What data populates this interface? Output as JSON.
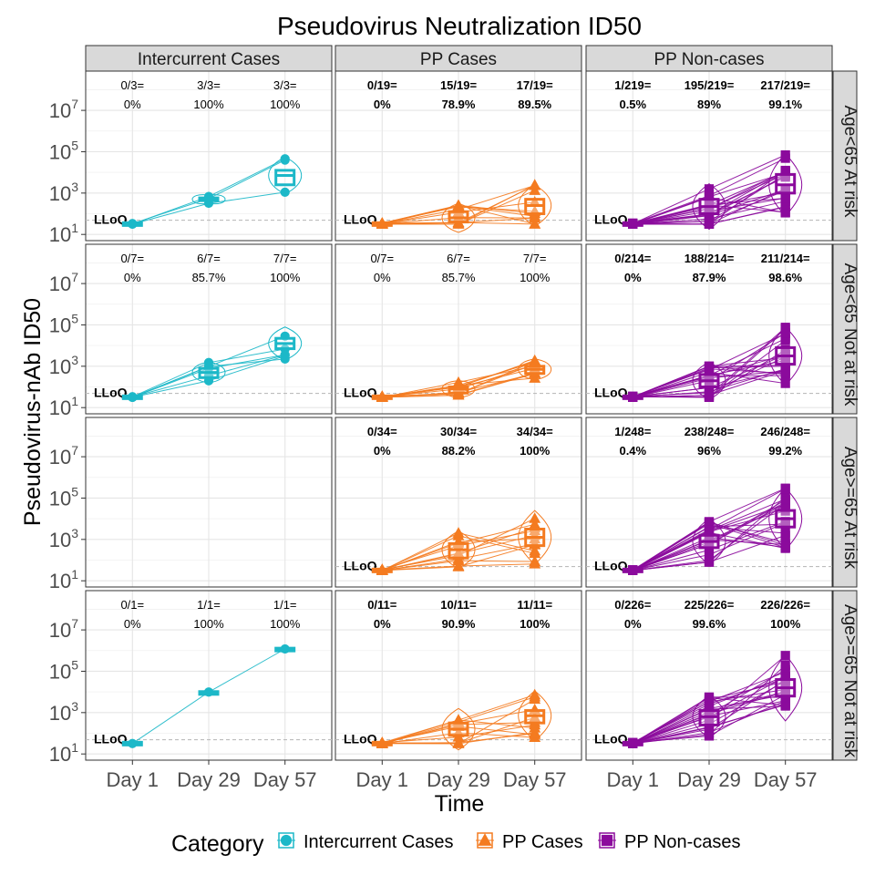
{
  "chart_data": {
    "type": "line",
    "title": "Pseudovirus Neutralization ID50",
    "xlabel": "Time",
    "ylabel": "Pseudovirus-nAb ID50",
    "x_categories": [
      "Day 1",
      "Day 29",
      "Day 57"
    ],
    "y_scale": "log10",
    "y_ticks": [
      {
        "base": "10",
        "exp": "1",
        "value": 10
      },
      {
        "base": "10",
        "exp": "3",
        "value": 1000
      },
      {
        "base": "10",
        "exp": "5",
        "value": 100000
      },
      {
        "base": "10",
        "exp": "7",
        "value": 10000000
      }
    ],
    "ylim_log10": [
      0.7,
      8.9
    ],
    "lloq": {
      "label": "LLoQ",
      "log10": 1.69
    },
    "columns": [
      "Intercurrent Cases",
      "PP Cases",
      "PP Non-cases"
    ],
    "rows": [
      "Age<65 At risk",
      "Age<65 Not at risk",
      "Age>=65 At risk",
      "Age>=65 Not at risk"
    ],
    "legend": {
      "title": "Category",
      "placement": "bottom",
      "items": [
        {
          "label": "Intercurrent Cases",
          "color": "#1CB8C8",
          "shape": "circle"
        },
        {
          "label": "PP Cases",
          "color": "#F47B20",
          "shape": "triangle"
        },
        {
          "label": "PP Non-cases",
          "color": "#8B0A9C",
          "shape": "square"
        }
      ]
    },
    "panels": [
      {
        "row": 0,
        "col": 0,
        "bold": false,
        "response": [
          [
            "0/3=",
            "0%"
          ],
          [
            "3/3=",
            "100%"
          ],
          [
            "3/3=",
            "100%"
          ]
        ],
        "median_log10": [
          1.5,
          2.7,
          3.85
        ],
        "q1_log10": [
          1.5,
          2.7,
          3.4
        ],
        "q3_log10": [
          1.5,
          2.7,
          4.1
        ],
        "spread_log10": [
          0.05,
          0.2,
          0.9
        ]
      },
      {
        "row": 0,
        "col": 1,
        "bold": true,
        "response": [
          [
            "0/19=",
            "0%"
          ],
          [
            "15/19=",
            "78.9%"
          ],
          [
            "17/19=",
            "89.5%"
          ]
        ],
        "median_log10": [
          1.5,
          1.8,
          2.4
        ],
        "q1_log10": [
          1.5,
          1.6,
          2.0
        ],
        "q3_log10": [
          1.5,
          2.1,
          2.7
        ],
        "spread_log10": [
          0.05,
          0.7,
          1.0
        ]
      },
      {
        "row": 0,
        "col": 2,
        "bold": true,
        "response": [
          [
            "1/219=",
            "0.5%"
          ],
          [
            "195/219=",
            "89%"
          ],
          [
            "217/219=",
            "99.1%"
          ]
        ],
        "median_log10": [
          1.5,
          2.35,
          3.4
        ],
        "q1_log10": [
          1.5,
          2.0,
          3.0
        ],
        "q3_log10": [
          1.5,
          2.7,
          3.9
        ],
        "spread_log10": [
          0.05,
          1.1,
          1.5
        ]
      },
      {
        "row": 1,
        "col": 0,
        "bold": false,
        "response": [
          [
            "0/7=",
            "0%"
          ],
          [
            "6/7=",
            "85.7%"
          ],
          [
            "7/7=",
            "100%"
          ]
        ],
        "median_log10": [
          1.5,
          2.7,
          4.1
        ],
        "q1_log10": [
          1.5,
          2.45,
          3.85
        ],
        "q3_log10": [
          1.5,
          2.9,
          4.35
        ],
        "spread_log10": [
          0.05,
          0.5,
          0.8
        ]
      },
      {
        "row": 1,
        "col": 1,
        "bold": false,
        "response": [
          [
            "0/7=",
            "0%"
          ],
          [
            "6/7=",
            "85.7%"
          ],
          [
            "7/7=",
            "100%"
          ]
        ],
        "median_log10": [
          1.5,
          1.9,
          2.85
        ],
        "q1_log10": [
          1.5,
          1.7,
          2.65
        ],
        "q3_log10": [
          1.5,
          2.0,
          3.0
        ],
        "spread_log10": [
          0.05,
          0.4,
          0.5
        ]
      },
      {
        "row": 1,
        "col": 2,
        "bold": true,
        "response": [
          [
            "0/214=",
            "0%"
          ],
          [
            "188/214=",
            "87.9%"
          ],
          [
            "211/214=",
            "98.6%"
          ]
        ],
        "median_log10": [
          1.5,
          2.3,
          3.5
        ],
        "q1_log10": [
          1.5,
          2.0,
          3.1
        ],
        "q3_log10": [
          1.5,
          2.6,
          3.9
        ],
        "spread_log10": [
          0.05,
          0.9,
          1.4
        ]
      },
      {
        "row": 2,
        "col": 1,
        "bold": true,
        "response": [
          [
            "0/34=",
            "0%"
          ],
          [
            "30/34=",
            "88.2%"
          ],
          [
            "34/34=",
            "100%"
          ]
        ],
        "median_log10": [
          1.5,
          2.5,
          3.1
        ],
        "q1_log10": [
          1.5,
          2.1,
          2.7
        ],
        "q3_log10": [
          1.5,
          2.8,
          3.5
        ],
        "spread_log10": [
          0.05,
          0.9,
          1.3
        ]
      },
      {
        "row": 2,
        "col": 2,
        "bold": true,
        "response": [
          [
            "1/248=",
            "0.4%"
          ],
          [
            "238/248=",
            "96%"
          ],
          [
            "246/248=",
            "99.2%"
          ]
        ],
        "median_log10": [
          1.5,
          2.9,
          4.0
        ],
        "q1_log10": [
          1.5,
          2.6,
          3.6
        ],
        "q3_log10": [
          1.5,
          3.2,
          4.4
        ],
        "spread_log10": [
          0.05,
          1.1,
          1.5
        ]
      },
      {
        "row": 3,
        "col": 0,
        "bold": false,
        "response": [
          [
            "0/1=",
            "0%"
          ],
          [
            "1/1=",
            "100%"
          ],
          [
            "1/1=",
            "100%"
          ]
        ],
        "median_log10": [
          1.5,
          3.95,
          6.05
        ],
        "q1_log10": [
          1.5,
          3.95,
          6.05
        ],
        "q3_log10": [
          1.5,
          3.95,
          6.05
        ],
        "spread_log10": [
          0.05,
          0.05,
          0.05
        ]
      },
      {
        "row": 3,
        "col": 1,
        "bold": true,
        "response": [
          [
            "0/11=",
            "0%"
          ],
          [
            "10/11=",
            "90.9%"
          ],
          [
            "11/11=",
            "100%"
          ]
        ],
        "median_log10": [
          1.5,
          2.2,
          2.85
        ],
        "q1_log10": [
          1.5,
          1.9,
          2.5
        ],
        "q3_log10": [
          1.5,
          2.5,
          3.1
        ],
        "spread_log10": [
          0.05,
          1.0,
          1.2
        ]
      },
      {
        "row": 3,
        "col": 2,
        "bold": true,
        "response": [
          [
            "0/226=",
            "0%"
          ],
          [
            "225/226=",
            "99.6%"
          ],
          [
            "226/226=",
            "100%"
          ]
        ],
        "median_log10": [
          1.5,
          2.8,
          4.2
        ],
        "q1_log10": [
          1.5,
          2.4,
          3.8
        ],
        "q3_log10": [
          1.5,
          3.1,
          4.6
        ],
        "spread_log10": [
          0.05,
          1.0,
          1.6
        ]
      }
    ]
  }
}
